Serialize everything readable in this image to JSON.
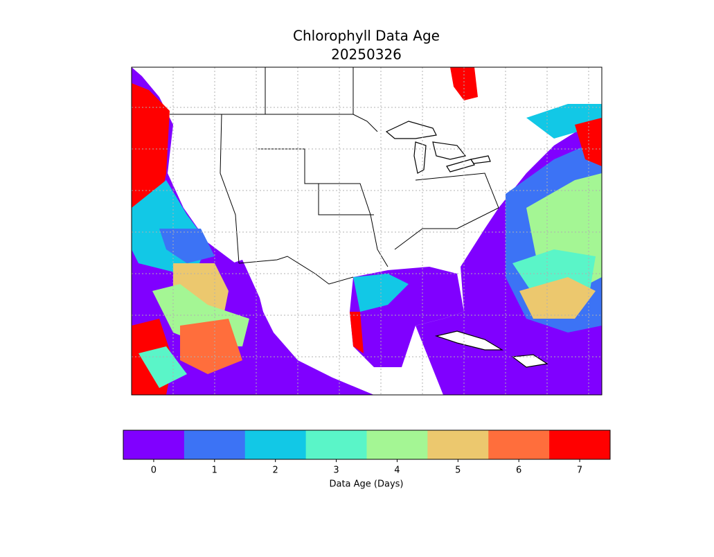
{
  "title": "Chlorophyll Data Age",
  "subtitle": "20250326",
  "colorbar": {
    "label": "Data Age (Days)",
    "ticks": [
      0,
      1,
      2,
      3,
      4,
      5,
      6,
      7
    ],
    "colors": [
      "#8000ff",
      "#3c73f5",
      "#12c8e6",
      "#5af5c8",
      "#a4f694",
      "#ecc86e",
      "#ff6e3c",
      "#ff0000"
    ]
  }
}
